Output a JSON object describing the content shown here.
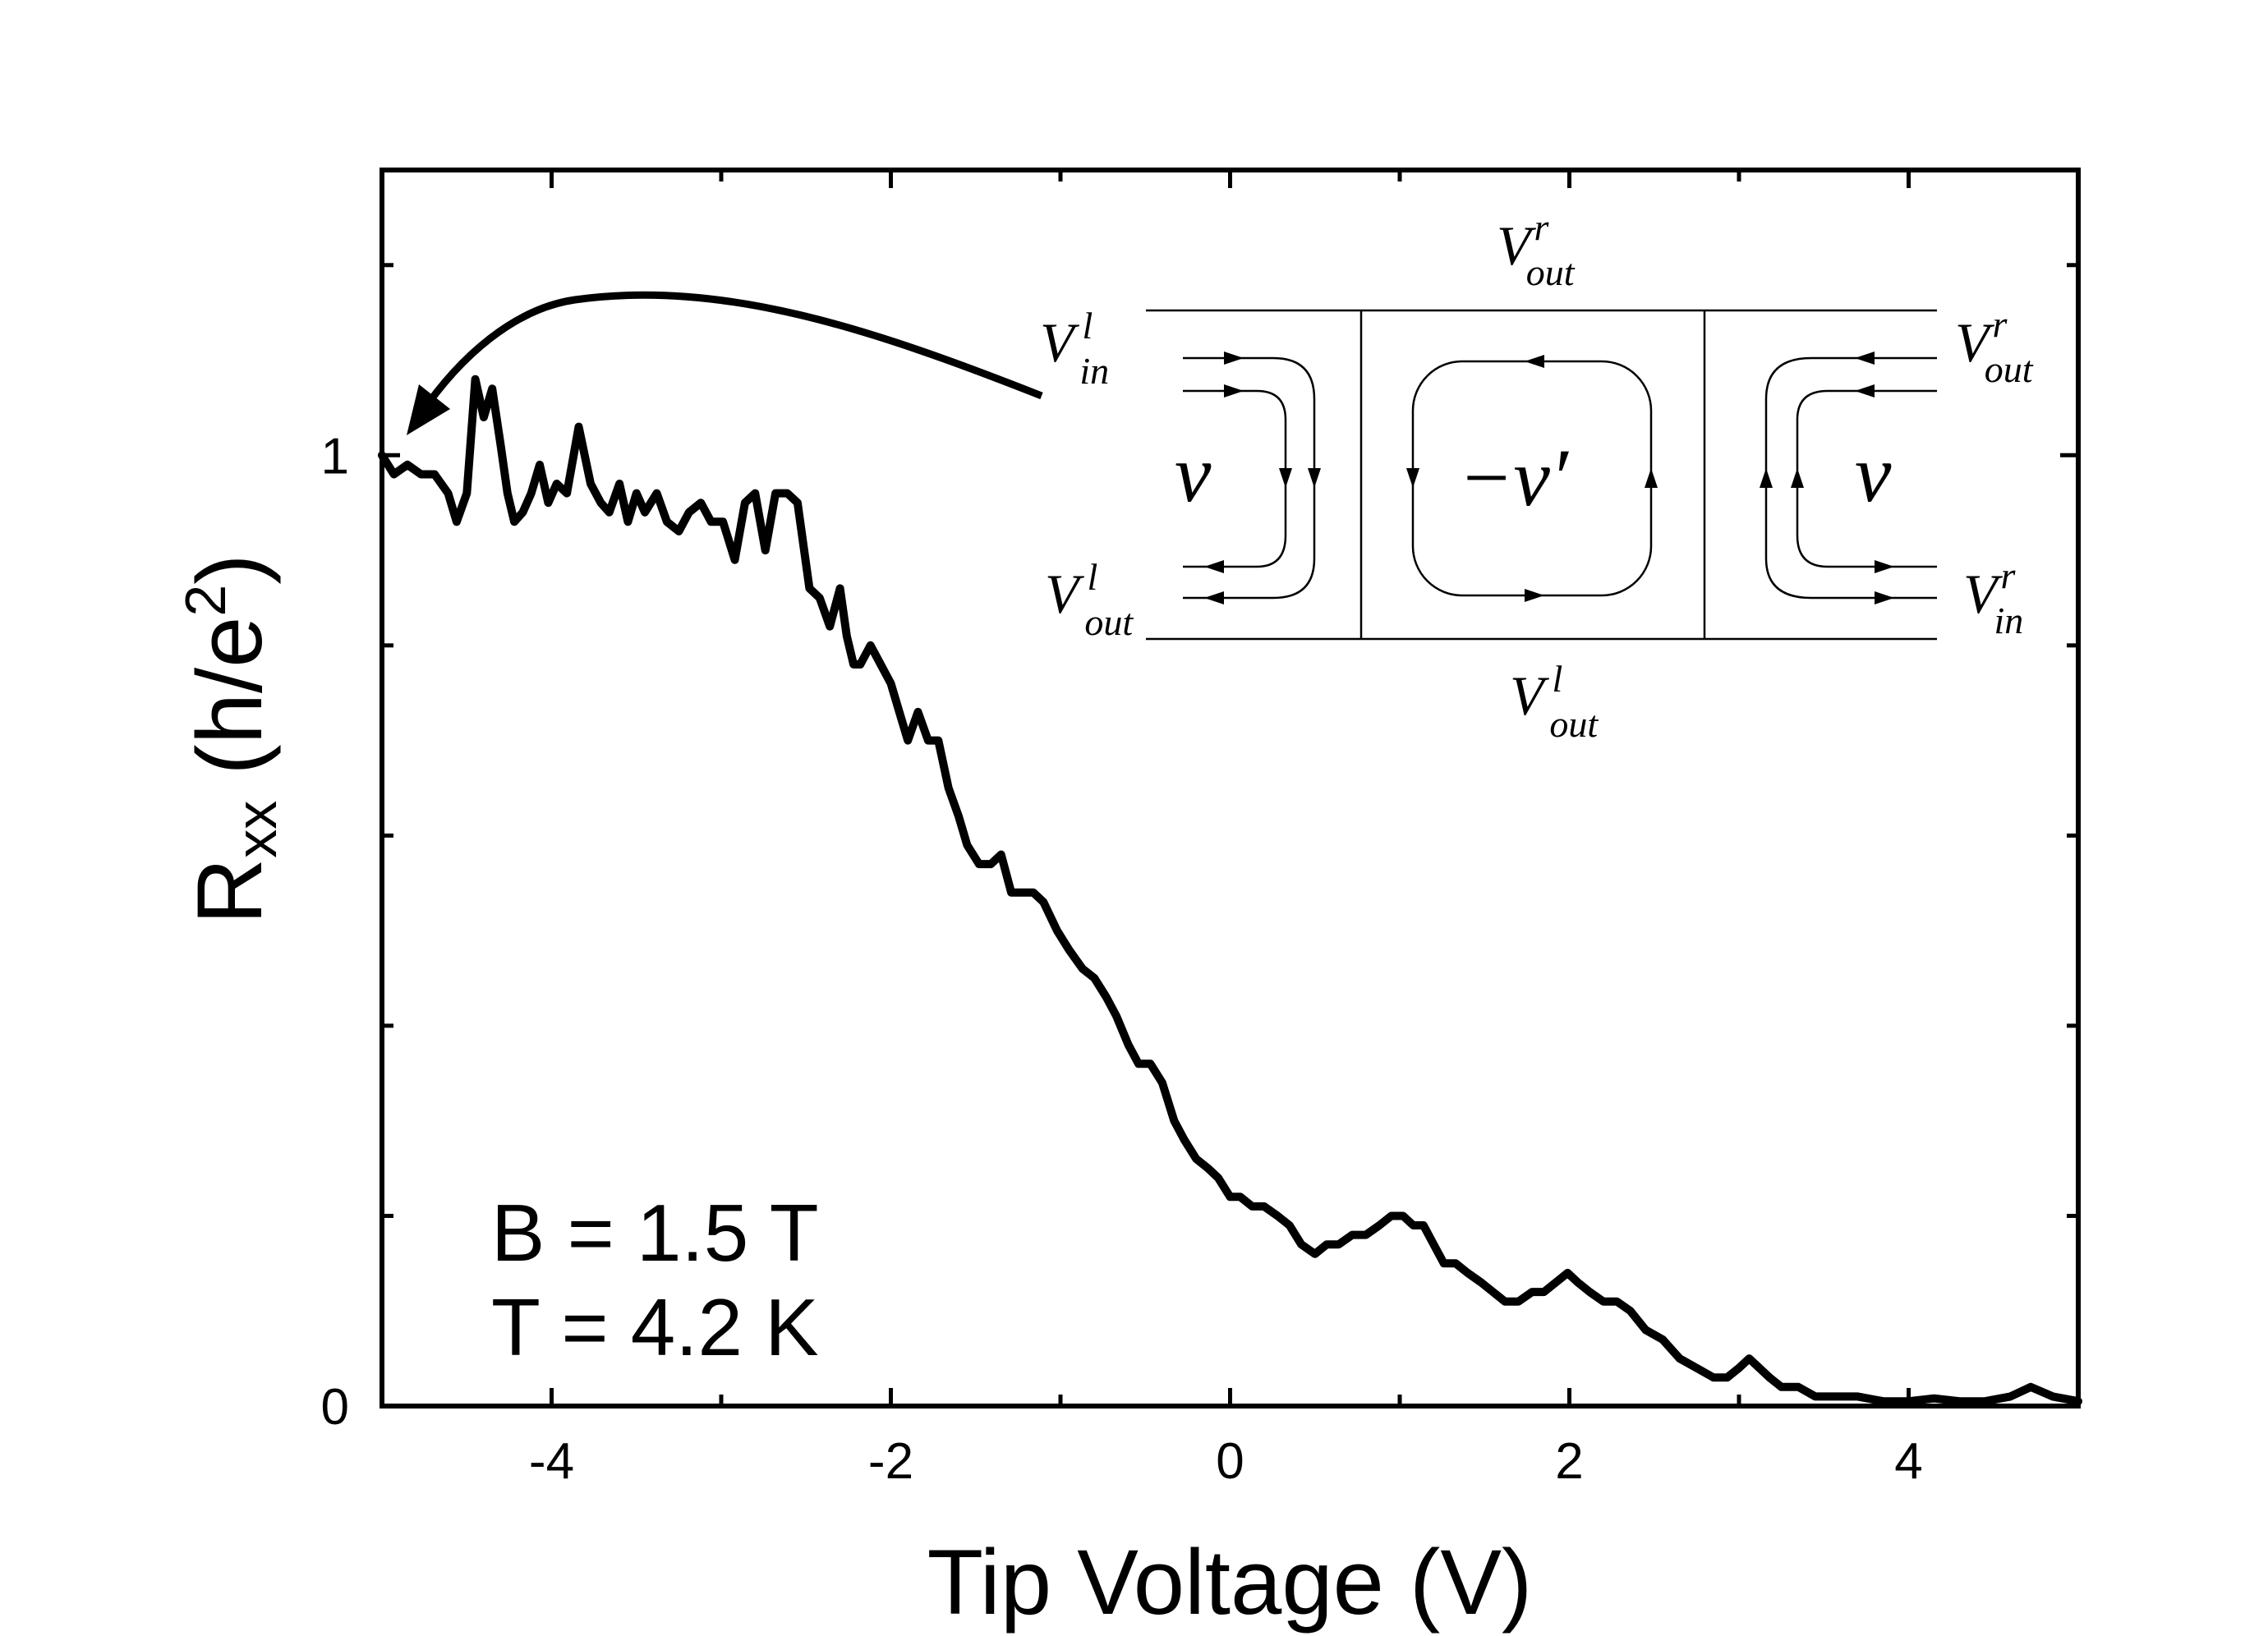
{
  "chart_data": {
    "type": "line",
    "title": "",
    "xlabel": "Tip Voltage (V)",
    "ylabel_main": "R",
    "ylabel_sub": "xx",
    "ylabel_paren": " (h/e",
    "ylabel_sup": "2",
    "ylabel_close": ")",
    "xlim": [
      -5,
      5
    ],
    "ylim": [
      0,
      1.3
    ],
    "x_ticks": [
      -4,
      -2,
      0,
      2,
      4
    ],
    "x_tick_labels": [
      "-4",
      "-2",
      "0",
      "2",
      "4"
    ],
    "y_ticks": [
      0,
      1
    ],
    "y_tick_labels": [
      "0",
      "1"
    ],
    "minor_x_step": 1,
    "minor_y_step": 0.2,
    "grid": false,
    "annotations": [
      "B = 1.5 T",
      "T = 4.2 K"
    ],
    "series": [
      {
        "color": "#000000",
        "x": [
          -5.0,
          -4.93,
          -4.85,
          -4.77,
          -4.69,
          -4.61,
          -4.56,
          -4.5,
          -4.45,
          -4.4,
          -4.35,
          -4.3,
          -4.26,
          -4.22,
          -4.17,
          -4.12,
          -4.07,
          -4.02,
          -3.97,
          -3.91,
          -3.84,
          -3.77,
          -3.71,
          -3.66,
          -3.6,
          -3.55,
          -3.5,
          -3.45,
          -3.38,
          -3.32,
          -3.25,
          -3.19,
          -3.12,
          -3.06,
          -2.99,
          -2.92,
          -2.86,
          -2.8,
          -2.74,
          -2.68,
          -2.61,
          -2.55,
          -2.48,
          -2.42,
          -2.36,
          -2.3,
          -2.26,
          -2.22,
          -2.18,
          -2.12,
          -2.06,
          -2.0,
          -1.95,
          -1.9,
          -1.84,
          -1.78,
          -1.72,
          -1.66,
          -1.6,
          -1.55,
          -1.48,
          -1.41,
          -1.35,
          -1.29,
          -1.22,
          -1.16,
          -1.1,
          -1.02,
          -0.95,
          -0.87,
          -0.8,
          -0.73,
          -0.67,
          -0.6,
          -0.54,
          -0.47,
          -0.4,
          -0.33,
          -0.27,
          -0.2,
          -0.13,
          -0.07,
          0.0,
          0.06,
          0.13,
          0.2,
          0.28,
          0.35,
          0.42,
          0.5,
          0.57,
          0.64,
          0.72,
          0.8,
          0.88,
          0.95,
          1.02,
          1.08,
          1.14,
          1.2,
          1.26,
          1.33,
          1.4,
          1.48,
          1.55,
          1.62,
          1.7,
          1.78,
          1.85,
          1.92,
          1.99,
          2.05,
          2.12,
          2.2,
          2.28,
          2.36,
          2.45,
          2.55,
          2.65,
          2.75,
          2.85,
          2.93,
          3.0,
          3.06,
          3.12,
          3.18,
          3.25,
          3.35,
          3.45,
          3.58,
          3.7,
          3.85,
          4.0,
          4.15,
          4.3,
          4.45,
          4.6,
          4.72,
          4.85,
          5.0
        ],
        "values": [
          1.0,
          0.98,
          0.99,
          0.98,
          0.98,
          0.96,
          0.93,
          0.96,
          1.08,
          1.04,
          1.07,
          1.01,
          0.96,
          0.93,
          0.94,
          0.96,
          0.99,
          0.95,
          0.97,
          0.96,
          1.03,
          0.97,
          0.95,
          0.94,
          0.97,
          0.93,
          0.96,
          0.94,
          0.96,
          0.93,
          0.92,
          0.94,
          0.95,
          0.93,
          0.93,
          0.89,
          0.95,
          0.96,
          0.9,
          0.96,
          0.96,
          0.95,
          0.86,
          0.85,
          0.82,
          0.86,
          0.81,
          0.78,
          0.78,
          0.8,
          0.78,
          0.76,
          0.73,
          0.7,
          0.73,
          0.7,
          0.7,
          0.65,
          0.62,
          0.59,
          0.57,
          0.57,
          0.58,
          0.54,
          0.54,
          0.54,
          0.53,
          0.5,
          0.48,
          0.46,
          0.45,
          0.43,
          0.41,
          0.38,
          0.36,
          0.36,
          0.34,
          0.3,
          0.28,
          0.26,
          0.25,
          0.24,
          0.22,
          0.22,
          0.21,
          0.21,
          0.2,
          0.19,
          0.17,
          0.16,
          0.17,
          0.17,
          0.18,
          0.18,
          0.19,
          0.2,
          0.2,
          0.19,
          0.19,
          0.17,
          0.15,
          0.15,
          0.14,
          0.13,
          0.12,
          0.11,
          0.11,
          0.12,
          0.12,
          0.13,
          0.14,
          0.13,
          0.12,
          0.11,
          0.11,
          0.1,
          0.08,
          0.07,
          0.05,
          0.04,
          0.03,
          0.03,
          0.04,
          0.05,
          0.04,
          0.03,
          0.02,
          0.02,
          0.01,
          0.01,
          0.01,
          0.005,
          0.005,
          0.008,
          0.005,
          0.005,
          0.01,
          0.02,
          0.01,
          0.005
        ]
      }
    ]
  },
  "inset": {
    "labels": {
      "V": "V",
      "in": "in",
      "out": "out",
      "l": "l",
      "r": "r",
      "nu": "ν",
      "minus_nu_prime": "−ν′"
    }
  }
}
